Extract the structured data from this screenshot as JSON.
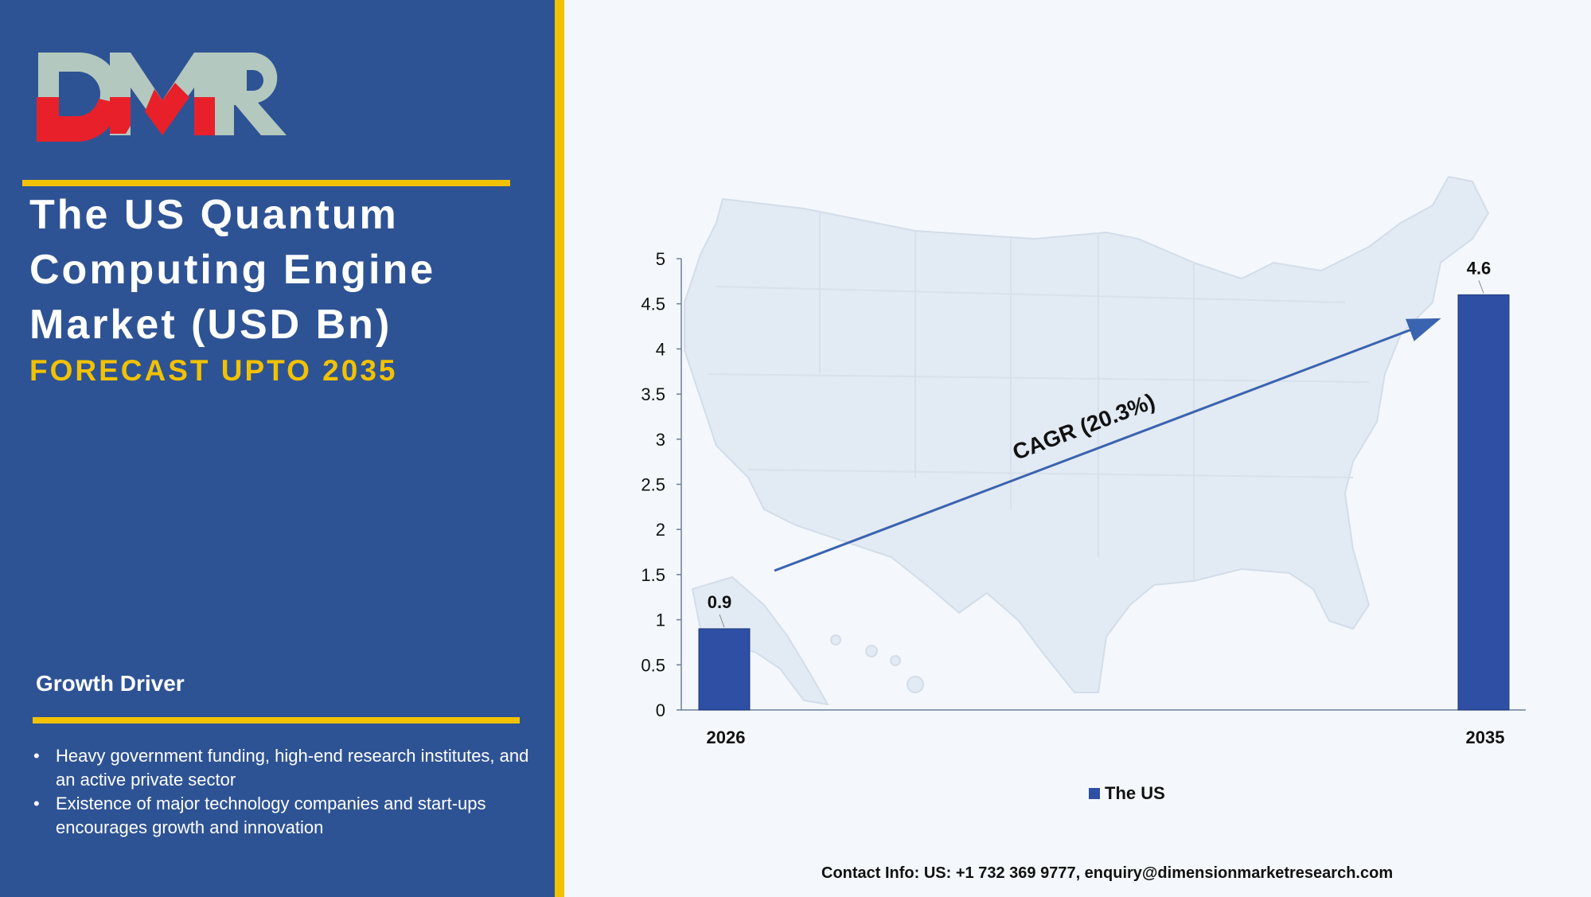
{
  "logo_text": "DMR",
  "title_lines": [
    "The US Quantum",
    "Computing Engine",
    "Market (USD Bn)"
  ],
  "subtitle": "FORECAST UPTO 2035",
  "growth_driver": {
    "title": "Growth Driver",
    "bullet_symbol": "•",
    "items": [
      "Heavy government funding, high-end research institutes, and an active private sector",
      "Existence of major technology companies and start-ups encourages growth and innovation"
    ]
  },
  "chart_data": {
    "type": "bar",
    "categories": [
      "2026",
      "2035"
    ],
    "series": [
      {
        "name": "The US",
        "values": [
          0.9,
          4.6
        ],
        "color": "#2e4fa3"
      }
    ],
    "yticks": [
      "0",
      "0.5",
      "1",
      "1.5",
      "2",
      "2.5",
      "3",
      "3.5",
      "4",
      "4.5",
      "5"
    ],
    "ylim": [
      0,
      5
    ],
    "data_labels": [
      "0.9",
      "4.6"
    ],
    "annotation": "CAGR (20.3%)",
    "legend_position": "bottom",
    "background": "US map silhouette"
  },
  "contact": "Contact Info: US: +1 732 369 9777, enquiry@dimensionmarketresearch.com",
  "colors": {
    "panel": "#2e5394",
    "accent": "#f2c200",
    "bar": "#2e4fa3",
    "logo_red": "#e8202a",
    "logo_gray": "#b3c8be"
  }
}
